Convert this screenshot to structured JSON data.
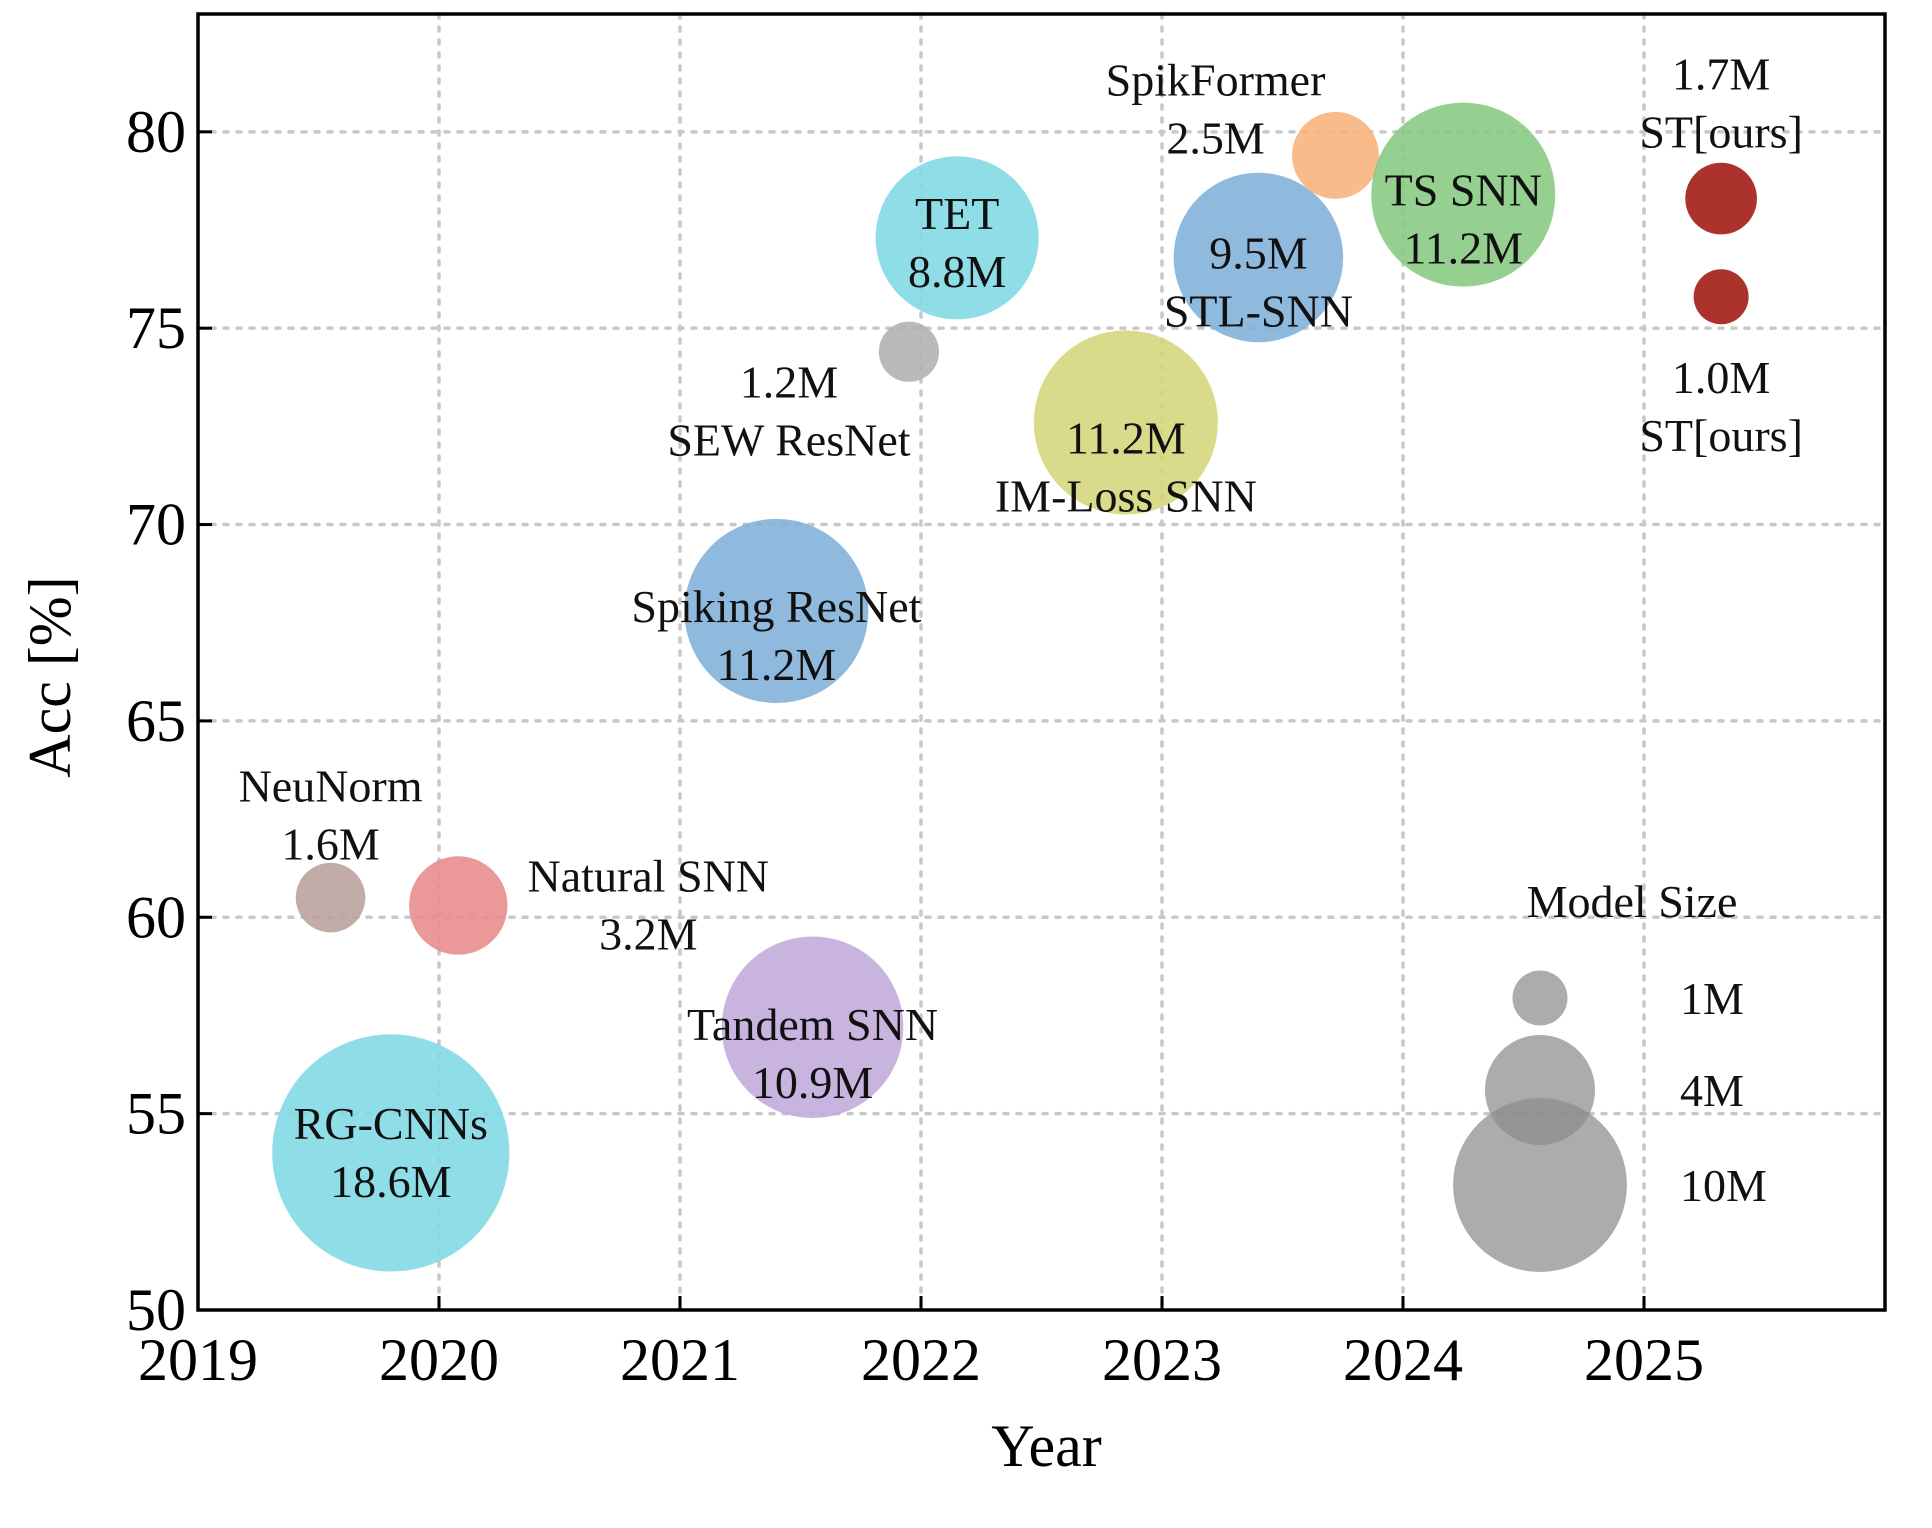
{
  "chart_data": {
    "type": "scatter",
    "subtype": "bubble",
    "xlabel": "Year",
    "ylabel": "Acc [%]",
    "xlim": [
      2019,
      2026
    ],
    "ylim": [
      50,
      83
    ],
    "xticks": [
      "2019",
      "2020",
      "2021",
      "2022",
      "2023",
      "2024",
      "2025"
    ],
    "yticks": [
      "50",
      "55",
      "60",
      "65",
      "70",
      "75",
      "80"
    ],
    "grid": true,
    "points": [
      {
        "name": "RG-CNNs",
        "size_label": "18.6M",
        "params_m": 18.6,
        "x": 2019.8,
        "y": 54.0,
        "color": "#7fd8e4"
      },
      {
        "name": "NeuNorm",
        "size_label": "1.6M",
        "params_m": 1.6,
        "x": 2019.55,
        "y": 60.5,
        "color": "#b9a19b"
      },
      {
        "name": "Natural SNN",
        "size_label": "3.2M",
        "params_m": 3.2,
        "x": 2020.08,
        "y": 60.3,
        "color": "#e88a8a"
      },
      {
        "name": "Spiking ResNet",
        "size_label": "11.2M",
        "params_m": 11.2,
        "x": 2021.4,
        "y": 67.8,
        "color": "#7fb0d8"
      },
      {
        "name": "Tandem SNN",
        "size_label": "10.9M",
        "params_m": 10.9,
        "x": 2021.55,
        "y": 57.2,
        "color": "#c0aadb"
      },
      {
        "name": "SEW ResNet",
        "size_label": "1.2M",
        "params_m": 1.2,
        "x": 2021.95,
        "y": 74.4,
        "color": "#b0b0b0"
      },
      {
        "name": "TET",
        "size_label": "8.8M",
        "params_m": 8.8,
        "x": 2022.15,
        "y": 77.3,
        "color": "#7fd8e4"
      },
      {
        "name": "IM-Loss SNN",
        "size_label": "11.2M",
        "params_m": 11.2,
        "x": 2022.85,
        "y": 72.6,
        "color": "#d4d67a"
      },
      {
        "name": "STL-SNN",
        "size_label": "9.5M",
        "params_m": 9.5,
        "x": 2023.4,
        "y": 76.8,
        "color": "#7fb0d8"
      },
      {
        "name": "SpikFormer",
        "size_label": "2.5M",
        "params_m": 2.5,
        "x": 2023.72,
        "y": 79.4,
        "color": "#f8b27a"
      },
      {
        "name": "TS SNN",
        "size_label": "11.2M",
        "params_m": 11.2,
        "x": 2024.25,
        "y": 78.4,
        "color": "#86c982"
      },
      {
        "name": "ST[ours]",
        "size_label": "1.7M",
        "params_m": 1.7,
        "x": 2025.32,
        "y": 78.3,
        "color": "#a82820"
      },
      {
        "name": "ST[ours]",
        "size_label": "1.0M",
        "params_m": 1.0,
        "x": 2025.32,
        "y": 75.8,
        "color": "#a82820"
      }
    ],
    "legend": {
      "title": "Model Size",
      "placement": "bottom-right",
      "entries": [
        {
          "label": "1M",
          "params_m": 1
        },
        {
          "label": "4M",
          "params_m": 4
        },
        {
          "label": "10M",
          "params_m": 10
        }
      ],
      "color": "#8c8c8c"
    }
  }
}
